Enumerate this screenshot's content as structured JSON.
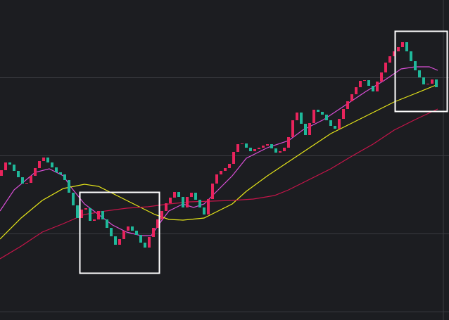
{
  "chart_data": {
    "type": "candlestick",
    "xlim": [
      0,
      638
    ],
    "ylim": [
      0,
      455
    ],
    "yticks": [
      12,
      123,
      234,
      345
    ],
    "grid": true,
    "background": "#1c1d21",
    "grid_color": "#3a3b40",
    "candles": {
      "up_color": "#e8245c",
      "down_color": "#1fb89a",
      "x": [
        2,
        8,
        14,
        20,
        26,
        32,
        38,
        44,
        50,
        56,
        62,
        68,
        74,
        80,
        86,
        92,
        98,
        104,
        110,
        116,
        122,
        128,
        134,
        140,
        146,
        152,
        158,
        164,
        170,
        176,
        182,
        188,
        194,
        200,
        206,
        212,
        218,
        224,
        230,
        236,
        242,
        248,
        254,
        260,
        266,
        272,
        278,
        284,
        290,
        296,
        302,
        308,
        314,
        320,
        326,
        332,
        338,
        344,
        350,
        356,
        362,
        368,
        374,
        380,
        386,
        392,
        398,
        404,
        410,
        416,
        422,
        428,
        434,
        440,
        446,
        452,
        458,
        464,
        470,
        476,
        482,
        488,
        494,
        500,
        506,
        512,
        518,
        524,
        530,
        536,
        542,
        548,
        554,
        560,
        566,
        572,
        578,
        584,
        590,
        596,
        602,
        608,
        614,
        620
      ],
      "open": [
        205,
        213,
        224,
        221,
        212,
        203,
        194,
        195,
        205,
        216,
        226,
        231,
        224,
        217,
        210,
        207,
        199,
        181,
        163,
        145,
        157,
        159,
        141,
        143,
        155,
        143,
        131,
        119,
        107,
        115,
        127,
        133,
        127,
        121,
        110,
        103,
        118,
        131,
        143,
        155,
        166,
        174,
        182,
        175,
        160,
        175,
        181,
        171,
        160,
        150,
        172,
        194,
        207,
        212,
        216,
        222,
        239,
        250,
        251,
        245,
        240,
        243,
        245,
        248,
        250,
        244,
        238,
        240,
        245,
        260,
        284,
        295,
        279,
        263,
        280,
        299,
        296,
        292,
        284,
        276,
        272,
        286,
        300,
        311,
        321,
        331,
        340,
        341,
        333,
        325,
        339,
        352,
        366,
        375,
        382,
        388,
        395,
        382,
        368,
        355,
        345,
        335,
        336,
        342
      ],
      "close": [
        213,
        224,
        221,
        212,
        203,
        194,
        195,
        205,
        216,
        226,
        231,
        224,
        217,
        210,
        207,
        199,
        181,
        163,
        145,
        157,
        159,
        141,
        143,
        155,
        143,
        131,
        119,
        107,
        115,
        127,
        133,
        127,
        121,
        110,
        103,
        118,
        131,
        143,
        155,
        166,
        174,
        182,
        175,
        160,
        175,
        181,
        171,
        160,
        150,
        172,
        194,
        207,
        212,
        216,
        222,
        239,
        250,
        251,
        245,
        240,
        243,
        245,
        248,
        250,
        244,
        238,
        240,
        245,
        260,
        284,
        295,
        279,
        263,
        280,
        299,
        296,
        292,
        284,
        276,
        272,
        286,
        300,
        311,
        321,
        331,
        340,
        341,
        333,
        325,
        339,
        352,
        366,
        375,
        382,
        388,
        395,
        382,
        368,
        355,
        345,
        335,
        336,
        342,
        331
      ]
    },
    "series": [
      {
        "color": "#d94fd6",
        "x": [
          0,
          20,
          50,
          70,
          90,
          100,
          120,
          140,
          160,
          180,
          200,
          215,
          225,
          240,
          260,
          275,
          290,
          310,
          330,
          350,
          380,
          410,
          430,
          460,
          490,
          520,
          545,
          570,
          590,
          610,
          622
        ],
        "values": [
          155,
          185,
          210,
          215,
          205,
          190,
          165,
          150,
          135,
          125,
          120,
          120,
          135,
          155,
          165,
          160,
          165,
          185,
          205,
          230,
          245,
          255,
          270,
          285,
          305,
          325,
          340,
          357,
          360,
          360,
          355
        ]
      },
      {
        "color": "#e6e619",
        "x": [
          0,
          30,
          60,
          90,
          120,
          140,
          160,
          180,
          200,
          220,
          240,
          260,
          290,
          310,
          330,
          350,
          380,
          410,
          440,
          470,
          500,
          530,
          560,
          590,
          622
        ],
        "values": [
          115,
          145,
          170,
          187,
          193,
          190,
          180,
          170,
          160,
          150,
          143,
          142,
          145,
          155,
          165,
          183,
          205,
          225,
          245,
          265,
          280,
          295,
          310,
          322,
          335
        ]
      },
      {
        "color": "#c8144a",
        "x": [
          0,
          30,
          60,
          90,
          120,
          150,
          180,
          210,
          240,
          270,
          300,
          330,
          360,
          390,
          410,
          440,
          470,
          500,
          530,
          560,
          590,
          622
        ],
        "values": [
          87,
          105,
          125,
          137,
          150,
          155,
          159,
          161,
          165,
          168,
          169,
          170,
          172,
          177,
          185,
          200,
          215,
          233,
          250,
          270,
          285,
          300
        ]
      }
    ]
  }
}
